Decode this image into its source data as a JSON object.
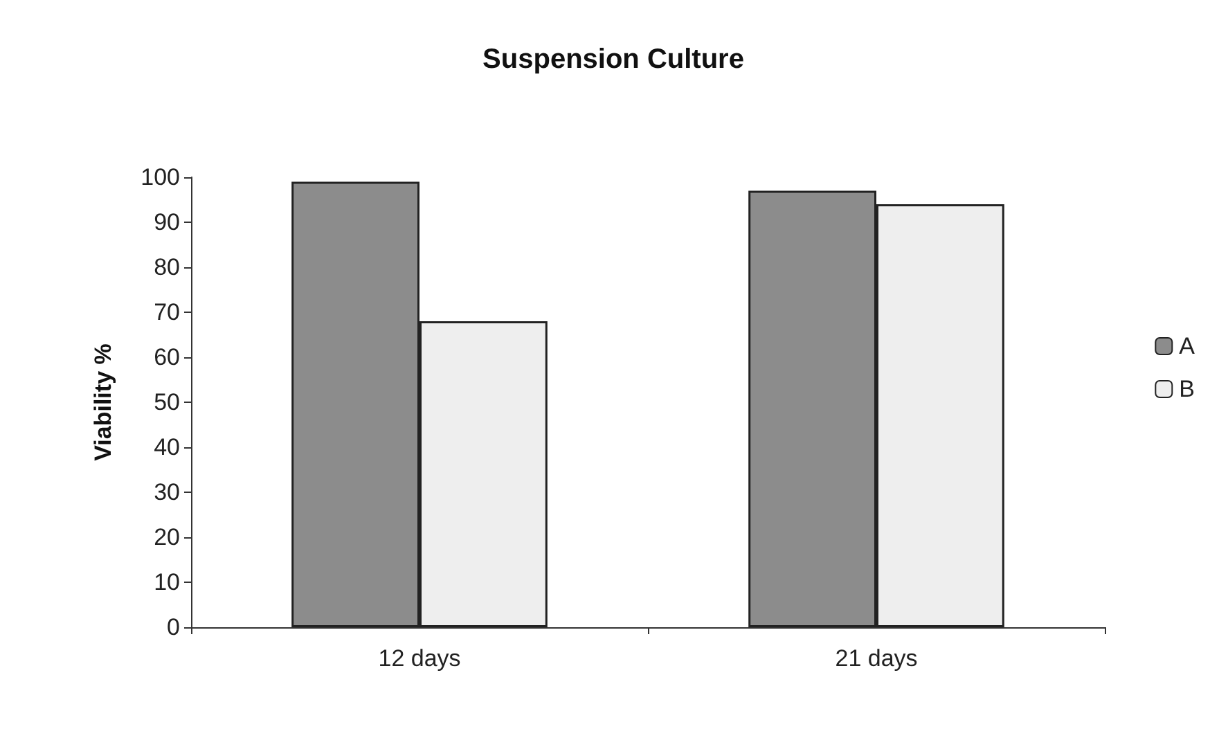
{
  "chart_data": {
    "type": "bar",
    "title": "Suspension Culture",
    "ylabel": "Viability %",
    "categories": [
      "12 days",
      "21 days"
    ],
    "series": [
      {
        "name": "A",
        "color": "#8c8c8c",
        "values": [
          99,
          97
        ]
      },
      {
        "name": "B",
        "color": "#eeeeee",
        "values": [
          68,
          94
        ]
      }
    ],
    "ylim": [
      0,
      100
    ],
    "yticks": [
      0,
      10,
      20,
      30,
      40,
      50,
      60,
      70,
      80,
      90,
      100
    ],
    "grid": false,
    "legend": "right"
  }
}
